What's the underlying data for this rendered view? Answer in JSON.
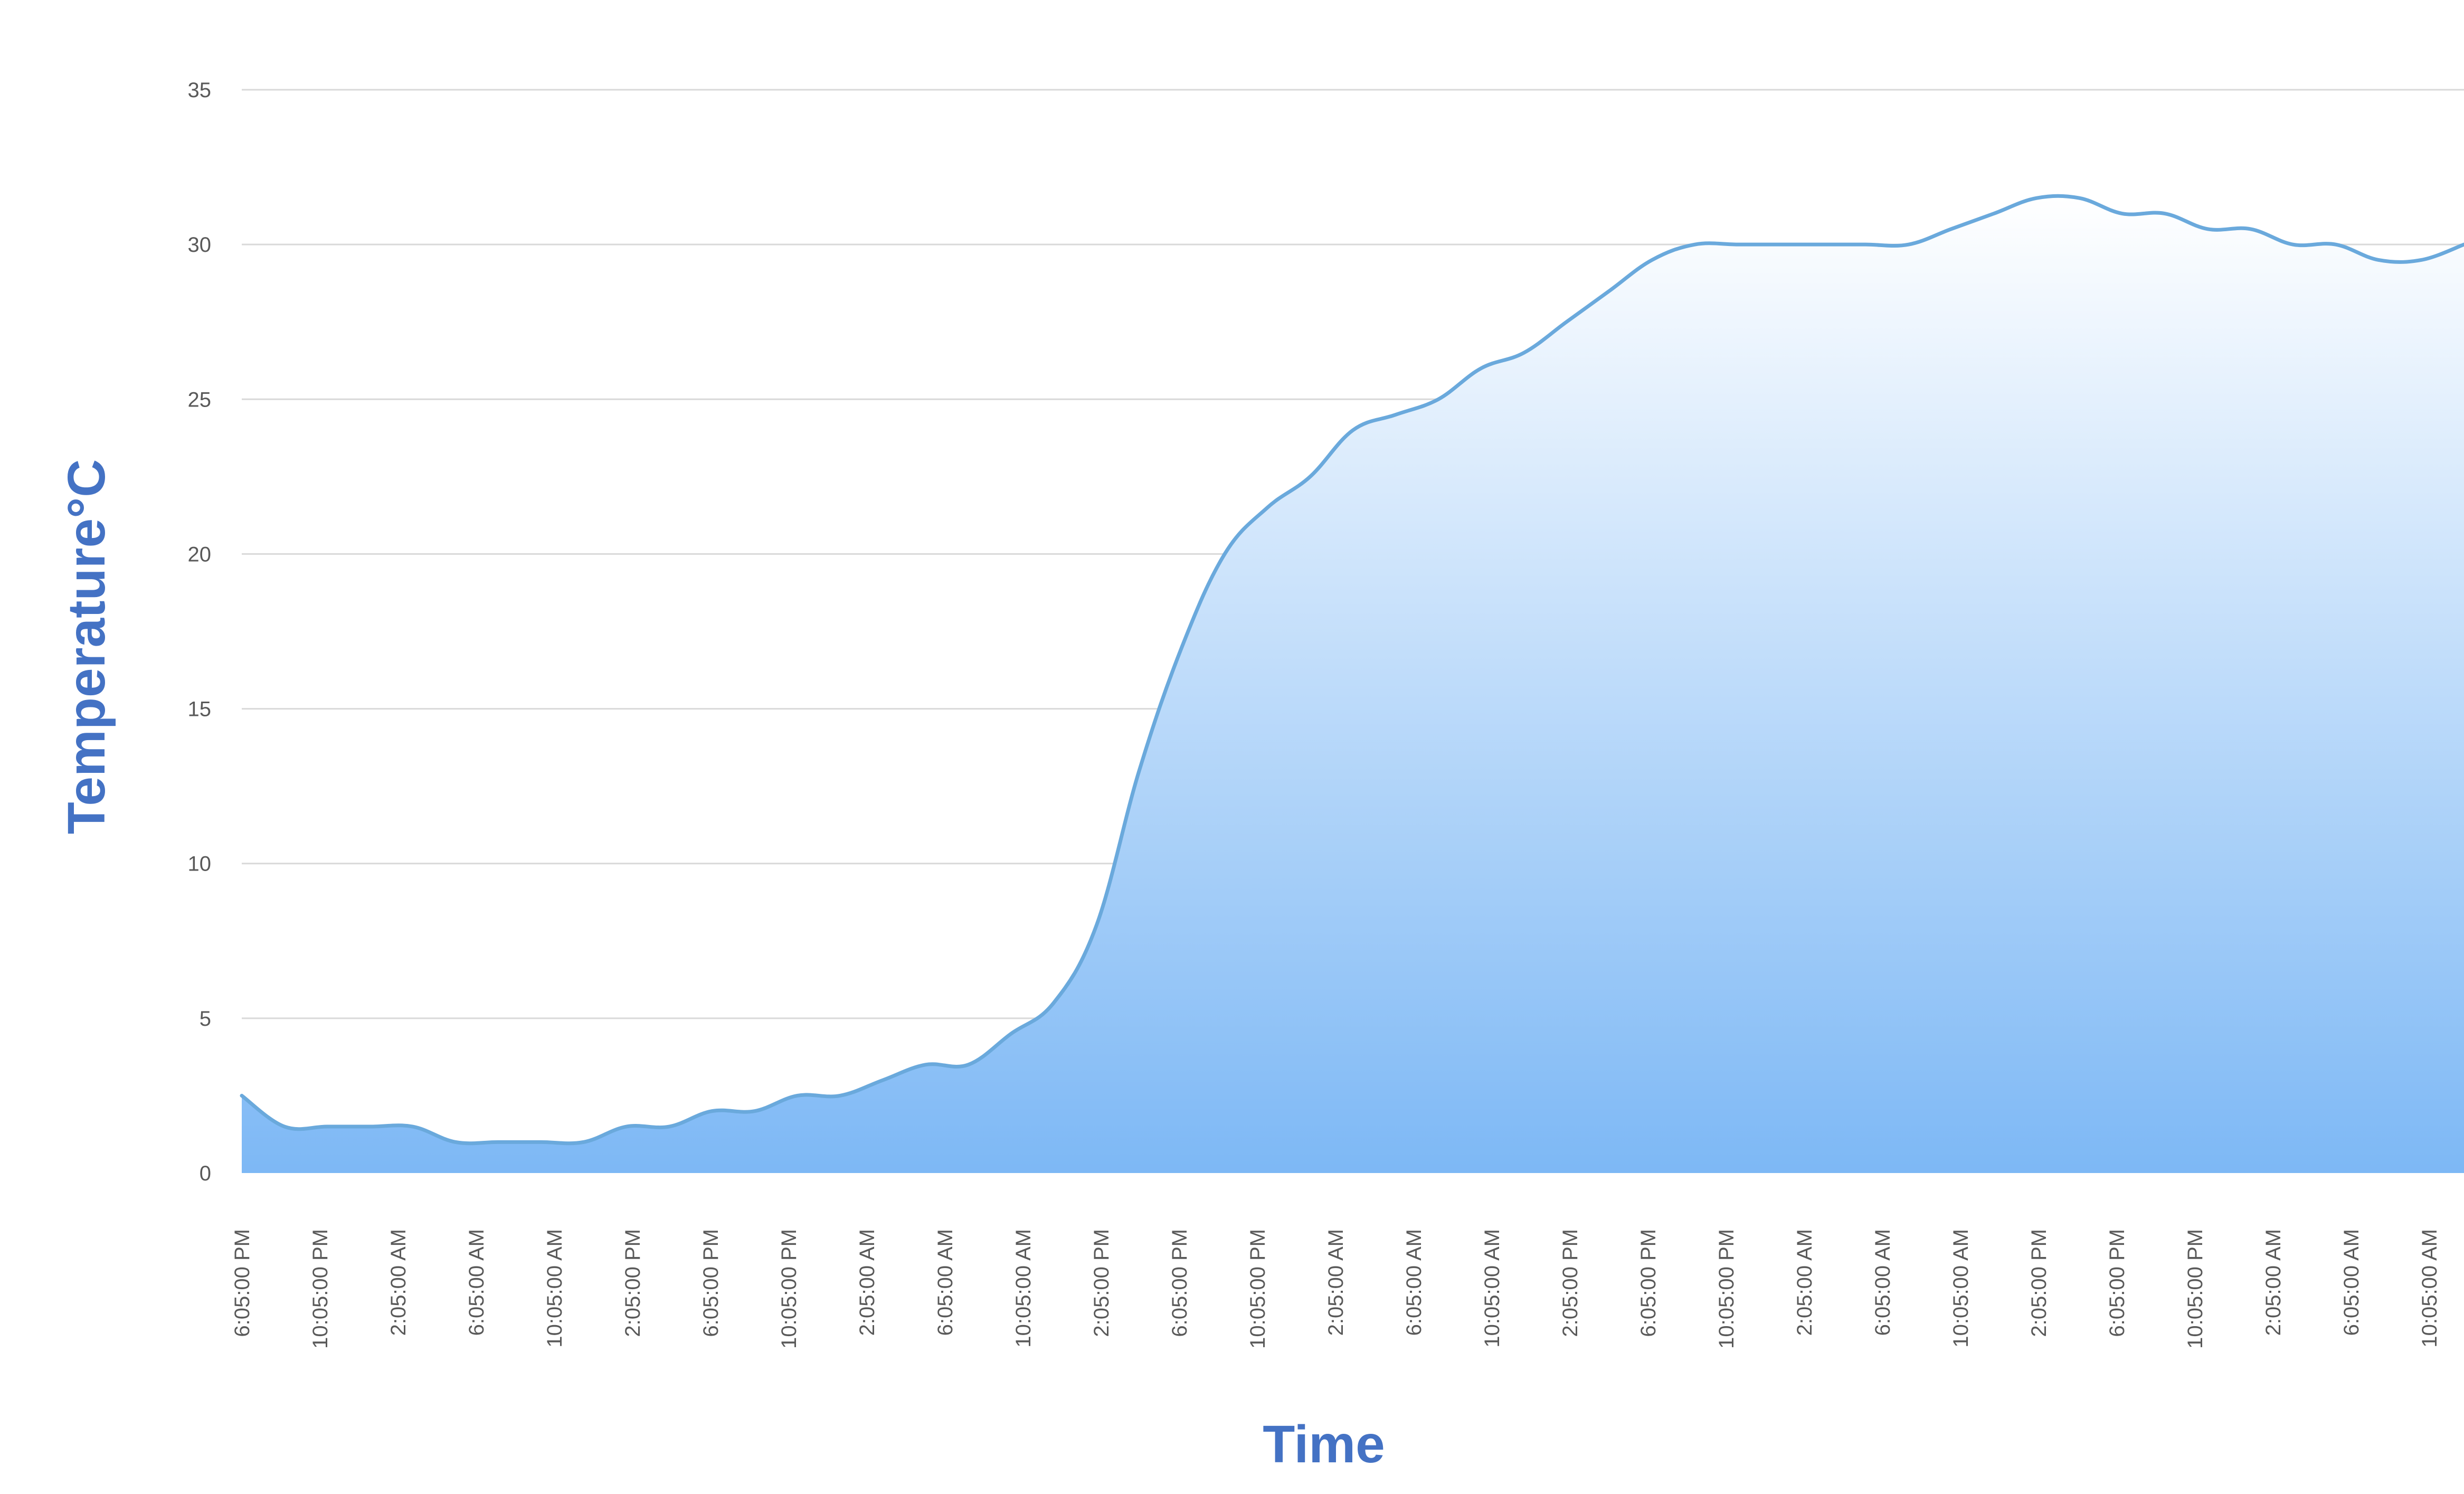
{
  "chart_data": {
    "type": "area",
    "xlabel": "Time",
    "ylabel": "Temperature°C",
    "ylim": [
      0,
      35
    ],
    "yticks": [
      0,
      5,
      10,
      15,
      20,
      25,
      30,
      35
    ],
    "grid": true,
    "x_tick_labels": [
      "6:05:00 PM",
      "10:05:00 PM",
      "2:05:00 AM",
      "6:05:00 AM",
      "10:05:00 AM",
      "2:05:00 PM",
      "6:05:00 PM",
      "10:05:00 PM",
      "2:05:00 AM",
      "6:05:00 AM",
      "10:05:00 AM",
      "2:05:00 PM",
      "6:05:00 PM",
      "10:05:00 PM",
      "2:05:00 AM",
      "6:05:00 AM",
      "10:05:00 AM",
      "2:05:00 PM",
      "6:05:00 PM",
      "10:05:00 PM",
      "2:05:00 AM",
      "6:05:00 AM",
      "10:05:00 AM",
      "2:05:00 PM",
      "6:05:00 PM",
      "10:05:00 PM",
      "2:05:00 AM",
      "6:05:00 AM",
      "10:05:00 AM"
    ],
    "colors": {
      "line": "#6aa9dc",
      "fill_top": "#ffffff",
      "fill_bottom": "#7db8f5",
      "axis_title": "#4472c4"
    },
    "series": [
      {
        "values": [
          2.5,
          1.5,
          1.5,
          1.5,
          1.5,
          1.0,
          1.0,
          1.0,
          1.0,
          1.5,
          1.5,
          2.0,
          2.0,
          2.5,
          2.5,
          3.0,
          3.5,
          3.5,
          4.5,
          5.5,
          8.0,
          13.0,
          17.0,
          20.0,
          21.5,
          22.5,
          24.0,
          24.5,
          25.0,
          26.0,
          26.5,
          27.5,
          28.5,
          29.5,
          30.0,
          30.0,
          30.0,
          30.0,
          30.0,
          30.0,
          30.5,
          31.0,
          31.5,
          31.5,
          31.0,
          31.0,
          30.5,
          30.5,
          30.0,
          30.0,
          29.5,
          29.5,
          30.0
        ]
      }
    ]
  }
}
